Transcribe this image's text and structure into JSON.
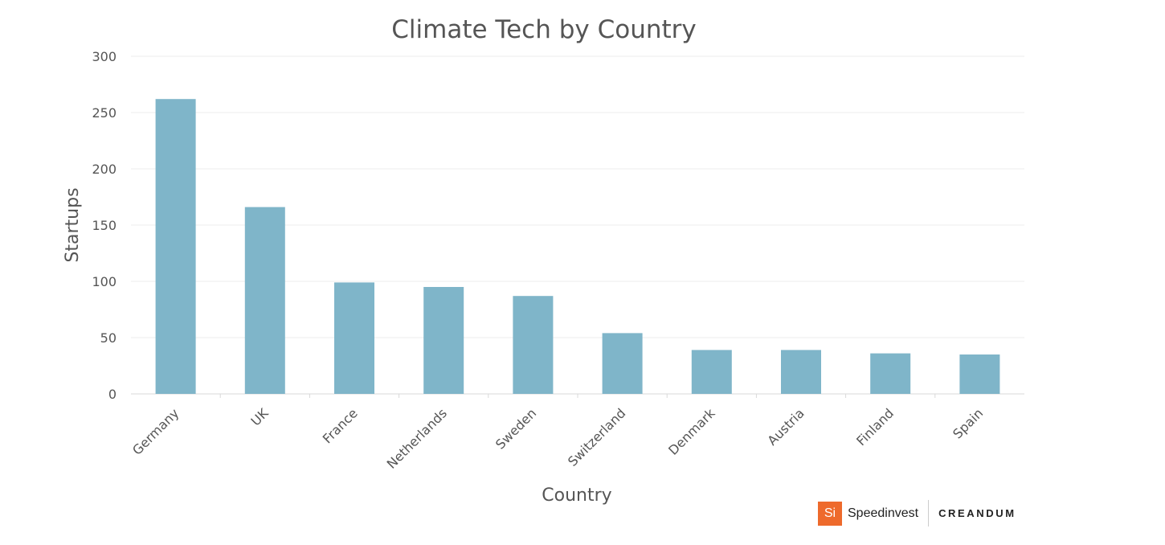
{
  "chart_data": {
    "type": "bar",
    "title": "Climate Tech by Country",
    "xlabel": "Country",
    "ylabel": "Startups",
    "categories": [
      "Germany",
      "UK",
      "France",
      "Netherlands",
      "Sweden",
      "Switzerland",
      "Denmark",
      "Austria",
      "Finland",
      "Spain"
    ],
    "values": [
      262,
      166,
      99,
      95,
      87,
      54,
      39,
      39,
      36,
      35
    ],
    "ylim": [
      0,
      300
    ],
    "yticks": [
      0,
      50,
      100,
      150,
      200,
      250,
      300
    ],
    "grid": true,
    "bar_color": "#7fb5c9"
  },
  "footer": {
    "brand_logo_text": "Si",
    "brand_logo_color": "#ee6a2c",
    "brand_name": "Speedinvest",
    "partner_name": "CREANDUM"
  }
}
